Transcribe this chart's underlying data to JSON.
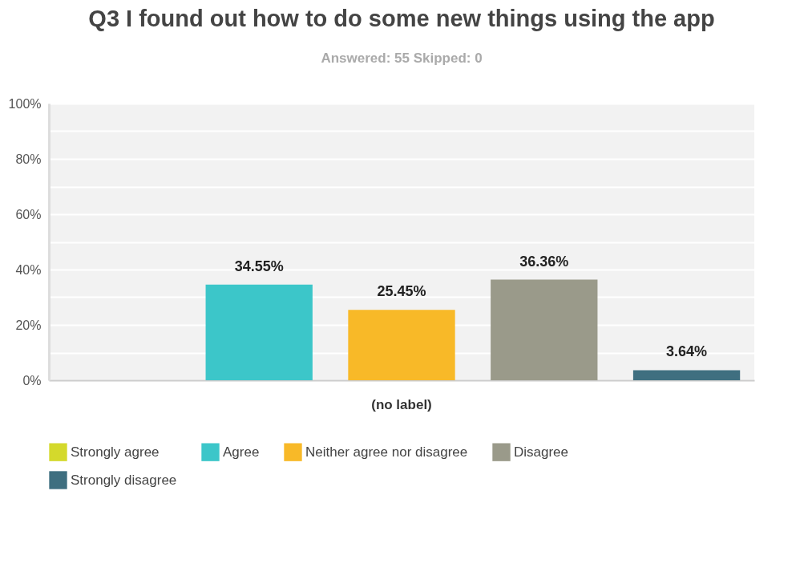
{
  "chart_data": {
    "type": "bar",
    "title": "Q3 I found out how to do some new things using the app",
    "subtitle": "Answered: 55    Skipped: 0",
    "categories": [
      "(no label)"
    ],
    "series": [
      {
        "name": "Strongly agree",
        "color": "#d4d92c",
        "values": [
          0
        ],
        "value_labels": [
          null
        ]
      },
      {
        "name": "Agree",
        "color": "#3cc6c9",
        "values": [
          34.55
        ],
        "value_labels": [
          "34.55%"
        ]
      },
      {
        "name": "Neither agree nor disagree",
        "color": "#f8b928",
        "values": [
          25.45
        ],
        "value_labels": [
          "25.45%"
        ]
      },
      {
        "name": "Disagree",
        "color": "#9a9a8a",
        "values": [
          36.36
        ],
        "value_labels": [
          "36.36%"
        ]
      },
      {
        "name": "Strongly disagree",
        "color": "#3f6f80",
        "values": [
          3.64
        ],
        "value_labels": [
          "3.64%"
        ]
      }
    ],
    "ylim": [
      0,
      100
    ],
    "yticks": [
      {
        "value": 0,
        "label": "0%"
      },
      {
        "value": 10,
        "label": null
      },
      {
        "value": 20,
        "label": "20%"
      },
      {
        "value": 30,
        "label": null
      },
      {
        "value": 40,
        "label": "40%"
      },
      {
        "value": 50,
        "label": null
      },
      {
        "value": 60,
        "label": "60%"
      },
      {
        "value": 70,
        "label": null
      },
      {
        "value": 80,
        "label": "80%"
      },
      {
        "value": 90,
        "label": null
      },
      {
        "value": 100,
        "label": "100%"
      }
    ],
    "grid": "y",
    "legend": "bottom"
  }
}
